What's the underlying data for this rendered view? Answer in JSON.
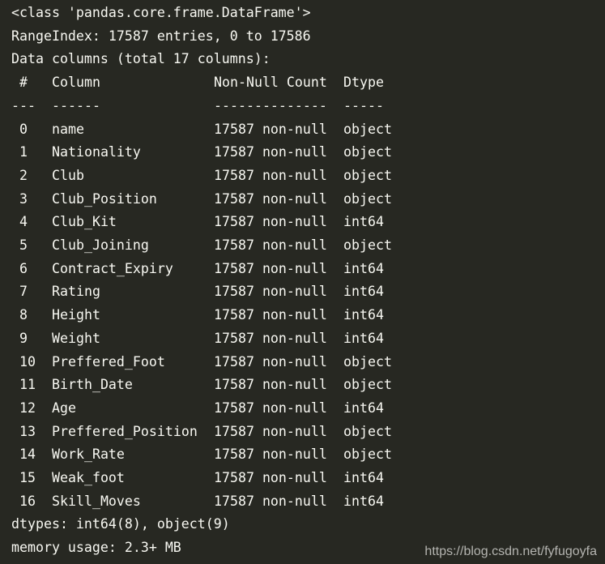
{
  "colors": {
    "background": "#272822",
    "text": "#f8f8f2",
    "watermark": "#b4b4b0"
  },
  "header_lines": [
    "<class 'pandas.core.frame.DataFrame'>",
    "RangeIndex: 17587 entries, 0 to 17586",
    "Data columns (total 17 columns):"
  ],
  "table_header": {
    "index": "#",
    "column": "Column",
    "count": "Non-Null Count",
    "dtype": "Dtype"
  },
  "table_rule": {
    "index": "---",
    "column": "------",
    "count": "--------------",
    "dtype": "-----"
  },
  "rows": [
    {
      "index": "0",
      "column": "name",
      "count": "17587 non-null",
      "dtype": "object"
    },
    {
      "index": "1",
      "column": "Nationality",
      "count": "17587 non-null",
      "dtype": "object"
    },
    {
      "index": "2",
      "column": "Club",
      "count": "17587 non-null",
      "dtype": "object"
    },
    {
      "index": "3",
      "column": "Club_Position",
      "count": "17587 non-null",
      "dtype": "object"
    },
    {
      "index": "4",
      "column": "Club_Kit",
      "count": "17587 non-null",
      "dtype": "int64"
    },
    {
      "index": "5",
      "column": "Club_Joining",
      "count": "17587 non-null",
      "dtype": "object"
    },
    {
      "index": "6",
      "column": "Contract_Expiry",
      "count": "17587 non-null",
      "dtype": "int64"
    },
    {
      "index": "7",
      "column": "Rating",
      "count": "17587 non-null",
      "dtype": "int64"
    },
    {
      "index": "8",
      "column": "Height",
      "count": "17587 non-null",
      "dtype": "int64"
    },
    {
      "index": "9",
      "column": "Weight",
      "count": "17587 non-null",
      "dtype": "int64"
    },
    {
      "index": "10",
      "column": "Preffered_Foot",
      "count": "17587 non-null",
      "dtype": "object"
    },
    {
      "index": "11",
      "column": "Birth_Date",
      "count": "17587 non-null",
      "dtype": "object"
    },
    {
      "index": "12",
      "column": "Age",
      "count": "17587 non-null",
      "dtype": "int64"
    },
    {
      "index": "13",
      "column": "Preffered_Position",
      "count": "17587 non-null",
      "dtype": "object"
    },
    {
      "index": "14",
      "column": "Work_Rate",
      "count": "17587 non-null",
      "dtype": "object"
    },
    {
      "index": "15",
      "column": "Weak_foot",
      "count": "17587 non-null",
      "dtype": "int64"
    },
    {
      "index": "16",
      "column": "Skill_Moves",
      "count": "17587 non-null",
      "dtype": "int64"
    }
  ],
  "footer_lines": [
    "dtypes: int64(8), object(9)",
    "memory usage: 2.3+ MB"
  ],
  "watermark": "https://blog.csdn.net/fyfugoyfa"
}
